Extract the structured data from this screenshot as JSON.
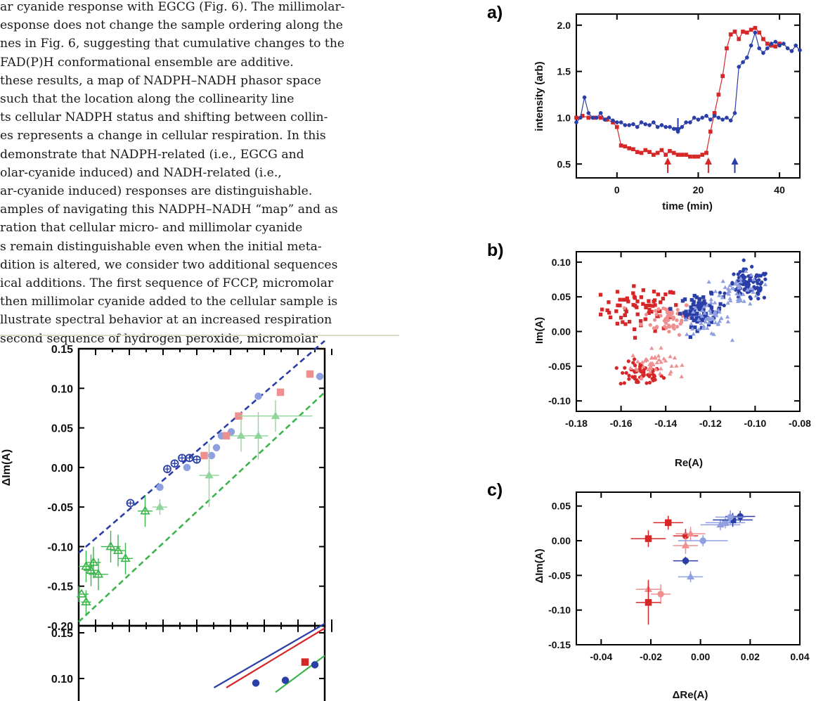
{
  "text": {
    "lines": [
      "ar cyanide response with EGCG (Fig. 6). The millimolar-",
      "esponse does not change the sample ordering along the",
      "nes in Fig. 6, suggesting that cumulative changes to the",
      "FAD(P)H conformational ensemble are additive.",
      "these results, a map of NADPH–NADH phasor space",
      "such that the location along the collinearity line",
      "ts cellular NADPH status and shifting between collin-",
      "es represents a change in cellular respiration. In this",
      "demonstrate that NADPH-related (i.e., EGCG and",
      "olar-cyanide induced) and NADH-related (i.e.,",
      "ar-cyanide induced) responses are distinguishable.",
      "amples of navigating this NADPH–NADH “map” and as",
      "ration that cellular micro- and millimolar cyanide",
      "s remain distinguishable even when the initial meta-",
      "dition is altered, we consider two additional sequences",
      "ical additions. The first sequence of FCCP, micromolar",
      "then millimolar cyanide added to the cellular sample is",
      "llustrate spectral behavior at an increased respiration",
      "second sequence of hydrogen peroxide, micromolar"
    ]
  },
  "colors": {
    "red": "#d62728",
    "pink": "#f08f8f",
    "blue": "#2a3ea8",
    "lightblue": "#8f9fe0",
    "green": "#3cb44b",
    "lightgreen": "#90d69a"
  },
  "chart_data": [
    {
      "panel": "a)",
      "type": "line",
      "xlabel": "time (min)",
      "ylabel": "intensity (arb)",
      "xlim": [
        -10,
        45
      ],
      "ylim": [
        0.35,
        2.12
      ],
      "xticks": [
        "0",
        "20",
        "40"
      ],
      "yticks": [
        "0.5",
        "1.0",
        "1.5",
        "2.0"
      ],
      "series": [
        {
          "color": "red",
          "marker": "square",
          "x": [
            -10,
            -8.5,
            -7,
            -5.5,
            -4,
            -2.5,
            -1,
            0,
            1,
            2,
            3,
            4,
            5,
            6,
            7,
            8,
            9,
            10,
            11,
            12,
            13,
            14,
            15,
            16,
            17,
            18,
            19,
            20,
            21,
            22,
            23,
            24,
            25,
            26,
            27,
            28,
            29,
            30,
            31,
            32,
            33,
            34,
            35,
            36,
            37,
            38,
            39,
            40
          ],
          "y": [
            1.0,
            1.02,
            1.0,
            1.0,
            1.0,
            0.98,
            0.95,
            0.9,
            0.7,
            0.69,
            0.67,
            0.66,
            0.63,
            0.62,
            0.65,
            0.63,
            0.6,
            0.62,
            0.65,
            0.6,
            0.64,
            0.62,
            0.6,
            0.6,
            0.6,
            0.58,
            0.58,
            0.58,
            0.6,
            0.62,
            0.85,
            1.05,
            1.25,
            1.45,
            1.75,
            1.9,
            1.93,
            1.85,
            1.93,
            1.92,
            1.95,
            1.97,
            1.92,
            1.85,
            1.8,
            1.78,
            1.77,
            1.8
          ]
        },
        {
          "color": "blue",
          "marker": "circle",
          "x": [
            -10,
            -9,
            -8,
            -7,
            -6,
            -5,
            -4,
            -3,
            -2,
            -1,
            0,
            1,
            2,
            3,
            4,
            5,
            6,
            7,
            8,
            9,
            10,
            11,
            12,
            13,
            14,
            15,
            16,
            17,
            18,
            19,
            20,
            21,
            22,
            23,
            24,
            25,
            26,
            27,
            28,
            29,
            30,
            31,
            32,
            33,
            34,
            35,
            36,
            37,
            38,
            39,
            40,
            41,
            42,
            43,
            44,
            45
          ],
          "y": [
            0.95,
            1.0,
            1.22,
            1.05,
            1.0,
            1.0,
            1.05,
            0.98,
            1.0,
            0.97,
            0.95,
            0.95,
            0.92,
            0.92,
            0.93,
            0.9,
            0.95,
            0.93,
            0.92,
            0.95,
            0.9,
            0.92,
            0.9,
            0.9,
            0.88,
            0.85,
            0.9,
            0.95,
            0.95,
            1.0,
            0.98,
            1.0,
            1.02,
            0.98,
            1.02,
            1.0,
            0.98,
            1.0,
            0.97,
            1.05,
            1.55,
            1.6,
            1.65,
            1.78,
            1.92,
            1.75,
            1.7,
            1.75,
            1.8,
            1.82,
            1.78,
            1.8,
            1.75,
            1.72,
            1.78,
            1.73
          ]
        }
      ],
      "arrows": [
        {
          "x": 12.5,
          "color": "red",
          "dir": "up"
        },
        {
          "x": 22.5,
          "color": "red",
          "dir": "up"
        },
        {
          "x": 15,
          "color": "blue",
          "dir": "down"
        },
        {
          "x": 29,
          "color": "blue",
          "dir": "up"
        }
      ]
    },
    {
      "panel": "b)",
      "type": "scatter",
      "xlabel": "Re(A)",
      "ylabel": "Im(A)",
      "xlim": [
        -0.18,
        -0.08
      ],
      "ylim": [
        -0.115,
        0.115
      ],
      "xticks": [
        "-0.18",
        "-0.16",
        "-0.14",
        "-0.12",
        "-0.10",
        "-0.08"
      ],
      "yticks": [
        "0.10",
        "0.05",
        "0.00",
        "-0.05",
        "-0.10"
      ],
      "clusters": [
        {
          "name": "red-upper",
          "color": "red",
          "marker": "square",
          "cx": -0.151,
          "cy": 0.033,
          "sx": 0.011,
          "sy": 0.02,
          "n": 70
        },
        {
          "name": "red-lower",
          "color": "red",
          "marker": "circle",
          "cx": -0.151,
          "cy": -0.062,
          "sx": 0.006,
          "sy": 0.011,
          "n": 55
        },
        {
          "name": "pink-upper",
          "color": "pink",
          "marker": "circle",
          "cx": -0.139,
          "cy": 0.02,
          "sx": 0.007,
          "sy": 0.015,
          "n": 55
        },
        {
          "name": "pink-lower",
          "color": "pink",
          "marker": "triangle",
          "cx": -0.146,
          "cy": -0.046,
          "sx": 0.006,
          "sy": 0.012,
          "n": 45
        },
        {
          "name": "blue-mid",
          "color": "blue",
          "marker": "square",
          "cx": -0.124,
          "cy": 0.03,
          "sx": 0.006,
          "sy": 0.014,
          "n": 80
        },
        {
          "name": "lightblue-mid",
          "color": "lightblue",
          "marker": "triangle",
          "cx": -0.121,
          "cy": 0.018,
          "sx": 0.006,
          "sy": 0.015,
          "n": 55
        },
        {
          "name": "blue-upper",
          "color": "blue",
          "marker": "circle",
          "cx": -0.103,
          "cy": 0.066,
          "sx": 0.006,
          "sy": 0.014,
          "n": 90
        },
        {
          "name": "lightblue-upper",
          "color": "lightblue",
          "marker": "triangle",
          "cx": -0.107,
          "cy": 0.06,
          "sx": 0.006,
          "sy": 0.014,
          "n": 45
        }
      ]
    },
    {
      "panel": "c)",
      "type": "scatter",
      "xlabel": "ΔRe(A)",
      "ylabel": "ΔIm(A)",
      "xlim": [
        -0.05,
        0.04
      ],
      "ylim": [
        -0.15,
        0.07
      ],
      "xticks": [
        "-0.04",
        "-0.02",
        "0.00",
        "0.02",
        "0.04"
      ],
      "yticks": [
        "0.05",
        "0.00",
        "-0.05",
        "-0.10",
        "-0.15"
      ],
      "points": [
        {
          "x": -0.013,
          "y": 0.026,
          "ex": 0.006,
          "ey": 0.01,
          "color": "red",
          "marker": "square"
        },
        {
          "x": -0.021,
          "y": 0.003,
          "ex": 0.007,
          "ey": 0.012,
          "color": "red",
          "marker": "square"
        },
        {
          "x": -0.006,
          "y": 0.007,
          "ex": 0.005,
          "ey": 0.01,
          "color": "red",
          "marker": "circle"
        },
        {
          "x": -0.004,
          "y": 0.01,
          "ex": 0.006,
          "ey": 0.01,
          "color": "pink",
          "marker": "triangle"
        },
        {
          "x": -0.006,
          "y": -0.007,
          "ex": 0.005,
          "ey": 0.012,
          "color": "pink",
          "marker": "triangle"
        },
        {
          "x": 0.001,
          "y": 0.0,
          "ex": 0.01,
          "ey": 0.008,
          "color": "lightblue",
          "marker": "circle"
        },
        {
          "x": -0.006,
          "y": -0.029,
          "ex": 0.005,
          "ey": 0.006,
          "color": "blue",
          "marker": "circle"
        },
        {
          "x": -0.004,
          "y": -0.052,
          "ex": 0.005,
          "ey": 0.008,
          "color": "lightblue",
          "marker": "triangle"
        },
        {
          "x": -0.021,
          "y": -0.07,
          "ex": 0.005,
          "ey": 0.014,
          "color": "pink",
          "marker": "triangle"
        },
        {
          "x": -0.016,
          "y": -0.077,
          "ex": 0.004,
          "ey": 0.014,
          "color": "pink",
          "marker": "circle"
        },
        {
          "x": -0.021,
          "y": -0.089,
          "ex": 0.005,
          "ey": 0.032,
          "color": "red",
          "marker": "square"
        },
        {
          "x": 0.008,
          "y": 0.023,
          "ex": 0.008,
          "ey": 0.008,
          "color": "lightblue",
          "marker": "triangle"
        },
        {
          "x": 0.01,
          "y": 0.026,
          "ex": 0.008,
          "ey": 0.008,
          "color": "lightblue",
          "marker": "square"
        },
        {
          "x": 0.013,
          "y": 0.03,
          "ex": 0.008,
          "ey": 0.01,
          "color": "blue",
          "marker": "square"
        },
        {
          "x": 0.016,
          "y": 0.035,
          "ex": 0.006,
          "ey": 0.008,
          "color": "blue",
          "marker": "circle"
        },
        {
          "x": 0.012,
          "y": 0.034,
          "ex": 0.006,
          "ey": 0.01,
          "color": "lightblue",
          "marker": "circle"
        }
      ]
    },
    {
      "panel": "bottom-left-top",
      "type": "scatter",
      "ylabel": "ΔIm(A)",
      "ylim": [
        -0.2,
        0.15
      ],
      "yticks": [
        "0.15",
        "0.10",
        "0.05",
        "0.00",
        "-0.05",
        "-0.10",
        "-0.15",
        "-0.20"
      ],
      "lines": [
        {
          "color": "blue",
          "dashed": true,
          "x1": 0,
          "y1": -0.108,
          "x2": 1,
          "y2": 0.16
        },
        {
          "color": "green",
          "dashed": true,
          "x1": 0,
          "y1": -0.195,
          "x2": 1,
          "y2": 0.095
        }
      ],
      "points": [
        {
          "x": 0.21,
          "y": -0.045,
          "color": "blue",
          "marker": "circle-open",
          "ex": 0.015,
          "ey": 0.003
        },
        {
          "x": 0.36,
          "y": -0.002,
          "color": "blue",
          "marker": "circle-open",
          "ex": 0.01,
          "ey": 0.004
        },
        {
          "x": 0.39,
          "y": 0.005,
          "color": "blue",
          "marker": "circle-open",
          "ex": 0.01,
          "ey": 0.004
        },
        {
          "x": 0.42,
          "y": 0.012,
          "color": "blue",
          "marker": "circle-open",
          "ex": 0.012,
          "ey": 0.004
        },
        {
          "x": 0.45,
          "y": 0.012,
          "color": "blue",
          "marker": "circle-open",
          "ex": 0.012,
          "ey": 0.004
        },
        {
          "x": 0.48,
          "y": 0.01,
          "color": "blue",
          "marker": "circle-open",
          "ex": 0.012,
          "ey": 0.004
        },
        {
          "x": 0.51,
          "y": 0.015,
          "color": "pink",
          "marker": "square",
          "ex": 0.012,
          "ey": 0.004
        },
        {
          "x": 0.54,
          "y": 0.015,
          "color": "lightblue",
          "marker": "circle",
          "ex": 0.01,
          "ey": 0.004
        },
        {
          "x": 0.44,
          "y": 0.0,
          "color": "lightblue",
          "marker": "circle",
          "ex": 0.01,
          "ey": 0.004
        },
        {
          "x": 0.33,
          "y": -0.025,
          "color": "lightblue",
          "marker": "circle",
          "ex": 0.01,
          "ey": 0.004
        },
        {
          "x": 0.56,
          "y": 0.025,
          "color": "lightblue",
          "marker": "circle",
          "ex": 0.01,
          "ey": 0.004
        },
        {
          "x": 0.58,
          "y": 0.04,
          "color": "lightblue",
          "marker": "circle",
          "ex": 0.01,
          "ey": 0.004
        },
        {
          "x": 0.62,
          "y": 0.045,
          "color": "lightblue",
          "marker": "circle",
          "ex": 0.01,
          "ey": 0.004
        },
        {
          "x": 0.6,
          "y": 0.04,
          "color": "pink",
          "marker": "square",
          "ex": 0.01,
          "ey": 0.004
        },
        {
          "x": 0.65,
          "y": 0.065,
          "color": "pink",
          "marker": "square",
          "ex": 0.015,
          "ey": 0.004
        },
        {
          "x": 0.73,
          "y": 0.09,
          "color": "lightblue",
          "marker": "circle",
          "ex": 0.015,
          "ey": 0.004
        },
        {
          "x": 0.82,
          "y": 0.095,
          "color": "pink",
          "marker": "square",
          "ex": 0.012,
          "ey": 0.004
        },
        {
          "x": 0.94,
          "y": 0.118,
          "color": "pink",
          "marker": "square",
          "ex": 0.015,
          "ey": 0.004
        },
        {
          "x": 0.98,
          "y": 0.115,
          "color": "lightblue",
          "marker": "circle",
          "ex": 0.01,
          "ey": 0.004
        },
        {
          "x": 0.0,
          "y": -0.16,
          "color": "green",
          "marker": "triangle-open",
          "ex": 0.04,
          "ey": 0.01
        },
        {
          "x": 0.03,
          "y": -0.17,
          "color": "green",
          "marker": "triangle-open",
          "ex": 0.02,
          "ey": 0.015
        },
        {
          "x": 0.03,
          "y": -0.125,
          "color": "green",
          "marker": "triangle-open",
          "ex": 0.03,
          "ey": 0.02
        },
        {
          "x": 0.05,
          "y": -0.13,
          "color": "green",
          "marker": "triangle-open",
          "ex": 0.03,
          "ey": 0.02
        },
        {
          "x": 0.06,
          "y": -0.12,
          "color": "green",
          "marker": "triangle-open",
          "ex": 0.03,
          "ey": 0.02
        },
        {
          "x": 0.08,
          "y": -0.135,
          "color": "green",
          "marker": "triangle-open",
          "ex": 0.04,
          "ey": 0.02
        },
        {
          "x": 0.13,
          "y": -0.1,
          "color": "green",
          "marker": "triangle-open",
          "ex": 0.04,
          "ey": 0.02
        },
        {
          "x": 0.16,
          "y": -0.105,
          "color": "green",
          "marker": "triangle-open",
          "ex": 0.03,
          "ey": 0.02
        },
        {
          "x": 0.19,
          "y": -0.115,
          "color": "green",
          "marker": "triangle-open",
          "ex": 0.03,
          "ey": 0.02
        },
        {
          "x": 0.27,
          "y": -0.055,
          "color": "green",
          "marker": "triangle-open",
          "ex": 0.03,
          "ey": 0.02
        },
        {
          "x": 0.33,
          "y": -0.05,
          "color": "lightgreen",
          "marker": "triangle",
          "ex": 0.03,
          "ey": 0.01
        },
        {
          "x": 0.53,
          "y": -0.01,
          "color": "lightgreen",
          "marker": "triangle",
          "ex": 0.04,
          "ey": 0.04
        },
        {
          "x": 0.66,
          "y": 0.04,
          "color": "lightgreen",
          "marker": "triangle",
          "ex": 0.05,
          "ey": 0.02
        },
        {
          "x": 0.73,
          "y": 0.04,
          "color": "lightgreen",
          "marker": "triangle",
          "ex": 0.04,
          "ey": 0.03
        },
        {
          "x": 0.8,
          "y": 0.065,
          "color": "lightgreen",
          "marker": "triangle",
          "ex": 0.15,
          "ey": 0.02
        }
      ]
    },
    {
      "panel": "bottom-left-bottom",
      "type": "scatter",
      "ylim": [
        0.075,
        0.16
      ],
      "yticks": [
        "0.15",
        "0.10"
      ],
      "lines": [
        {
          "color": "blue",
          "dashed": false,
          "x1": 0.55,
          "y1": 0.09,
          "x2": 1,
          "y2": 0.16
        },
        {
          "color": "red",
          "dashed": false,
          "x1": 0.6,
          "y1": 0.09,
          "x2": 1,
          "y2": 0.155
        },
        {
          "color": "green",
          "dashed": false,
          "x1": 0.8,
          "y1": 0.085,
          "x2": 1,
          "y2": 0.125
        }
      ],
      "points": [
        {
          "x": 0.72,
          "y": 0.095,
          "color": "blue",
          "marker": "circle"
        },
        {
          "x": 0.84,
          "y": 0.098,
          "color": "blue",
          "marker": "circle"
        },
        {
          "x": 0.92,
          "y": 0.118,
          "color": "red",
          "marker": "square"
        },
        {
          "x": 0.96,
          "y": 0.115,
          "color": "blue",
          "marker": "circle"
        }
      ]
    }
  ],
  "labels": {
    "a": "a)",
    "b": "b)",
    "c": "c)"
  }
}
